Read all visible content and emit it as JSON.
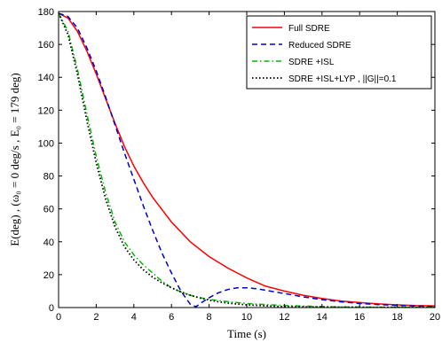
{
  "chart_data": {
    "type": "line",
    "xlabel": "Time (s)",
    "ylabel": "E(deg) ,  (ω₀ = 0 deg/s , E₀ = 179 deg)",
    "xlim": [
      0,
      20
    ],
    "ylim": [
      0,
      180
    ],
    "xticks": [
      "0",
      "2",
      "4",
      "6",
      "8",
      "10",
      "12",
      "14",
      "16",
      "18",
      "20"
    ],
    "yticks": [
      "0",
      "20",
      "40",
      "60",
      "80",
      "100",
      "120",
      "140",
      "160",
      "180"
    ],
    "grid": false,
    "legend_position": "top-right",
    "series": [
      {
        "name": "Full SDRE",
        "color": "#ff0000",
        "dash": "solid",
        "x": [
          0,
          0.5,
          1,
          1.5,
          2,
          2.5,
          3,
          3.5,
          4,
          4.5,
          5,
          6,
          7,
          8,
          9,
          10,
          11,
          12,
          13,
          14,
          15,
          16,
          17,
          18,
          19,
          20
        ],
        "y": [
          179,
          176,
          168,
          156,
          142,
          127,
          112,
          98,
          86,
          76,
          67,
          52,
          40,
          31,
          24,
          18,
          13,
          10,
          7.5,
          5.5,
          4,
          3,
          2.2,
          1.6,
          1.2,
          1.0
        ]
      },
      {
        "name": "Reduced SDRE",
        "color": "#0000cc",
        "dash": "dashed",
        "x": [
          0,
          0.5,
          1,
          1.5,
          2,
          2.5,
          3,
          3.5,
          4,
          4.5,
          5,
          5.5,
          6,
          6.5,
          7,
          7.3,
          7.6,
          8,
          8.5,
          9,
          9.5,
          10,
          10.5,
          11,
          12,
          13,
          14,
          15,
          16,
          17,
          18,
          19,
          20
        ],
        "y": [
          179,
          177,
          170,
          158,
          144,
          128,
          111,
          94,
          78,
          62,
          47,
          33,
          21,
          10,
          2,
          0.5,
          3,
          6,
          9,
          11,
          12,
          12,
          11.5,
          10.5,
          8.5,
          6.5,
          4.8,
          3.5,
          2.5,
          1.8,
          1.3,
          0.9,
          0.6
        ]
      },
      {
        "name": "SDRE +ISL",
        "color": "#00bb00",
        "dash": "dashdot",
        "x": [
          0,
          0.5,
          1,
          1.5,
          2,
          2.5,
          3,
          3.5,
          4,
          4.5,
          5,
          5.5,
          6,
          6.5,
          7,
          7.5,
          8,
          8.5,
          9,
          9.5,
          10,
          11,
          12,
          13,
          14,
          15,
          16,
          17,
          18,
          19,
          20
        ],
        "y": [
          179,
          168,
          145,
          118,
          92,
          70,
          52,
          40,
          32,
          26,
          21,
          16,
          12,
          9.5,
          7.5,
          6,
          5,
          4.2,
          3.6,
          3,
          2.5,
          1.8,
          1.3,
          0.9,
          0.6,
          0.4,
          0.3,
          0.2,
          0.15,
          0.1,
          0.1
        ]
      },
      {
        "name": "SDRE +ISL+LYP  , ||G||=0.1",
        "color": "#000000",
        "dash": "dotted",
        "x": [
          0,
          0.5,
          1,
          1.5,
          2,
          2.5,
          3,
          3.5,
          4,
          4.5,
          5,
          5.5,
          6,
          6.5,
          7,
          7.5,
          8,
          8.5,
          9,
          9.5,
          10,
          11,
          12,
          13,
          14,
          15,
          16,
          17,
          18,
          19,
          20
        ],
        "y": [
          179,
          166,
          142,
          114,
          88,
          66,
          49,
          37,
          29,
          23,
          18.5,
          15,
          12,
          9.5,
          7.5,
          5.8,
          4.5,
          3.5,
          2.7,
          2.1,
          1.6,
          1.0,
          0.6,
          0.4,
          0.3,
          0.2,
          0.15,
          0.1,
          0.1,
          0.05,
          0.05
        ]
      }
    ]
  }
}
